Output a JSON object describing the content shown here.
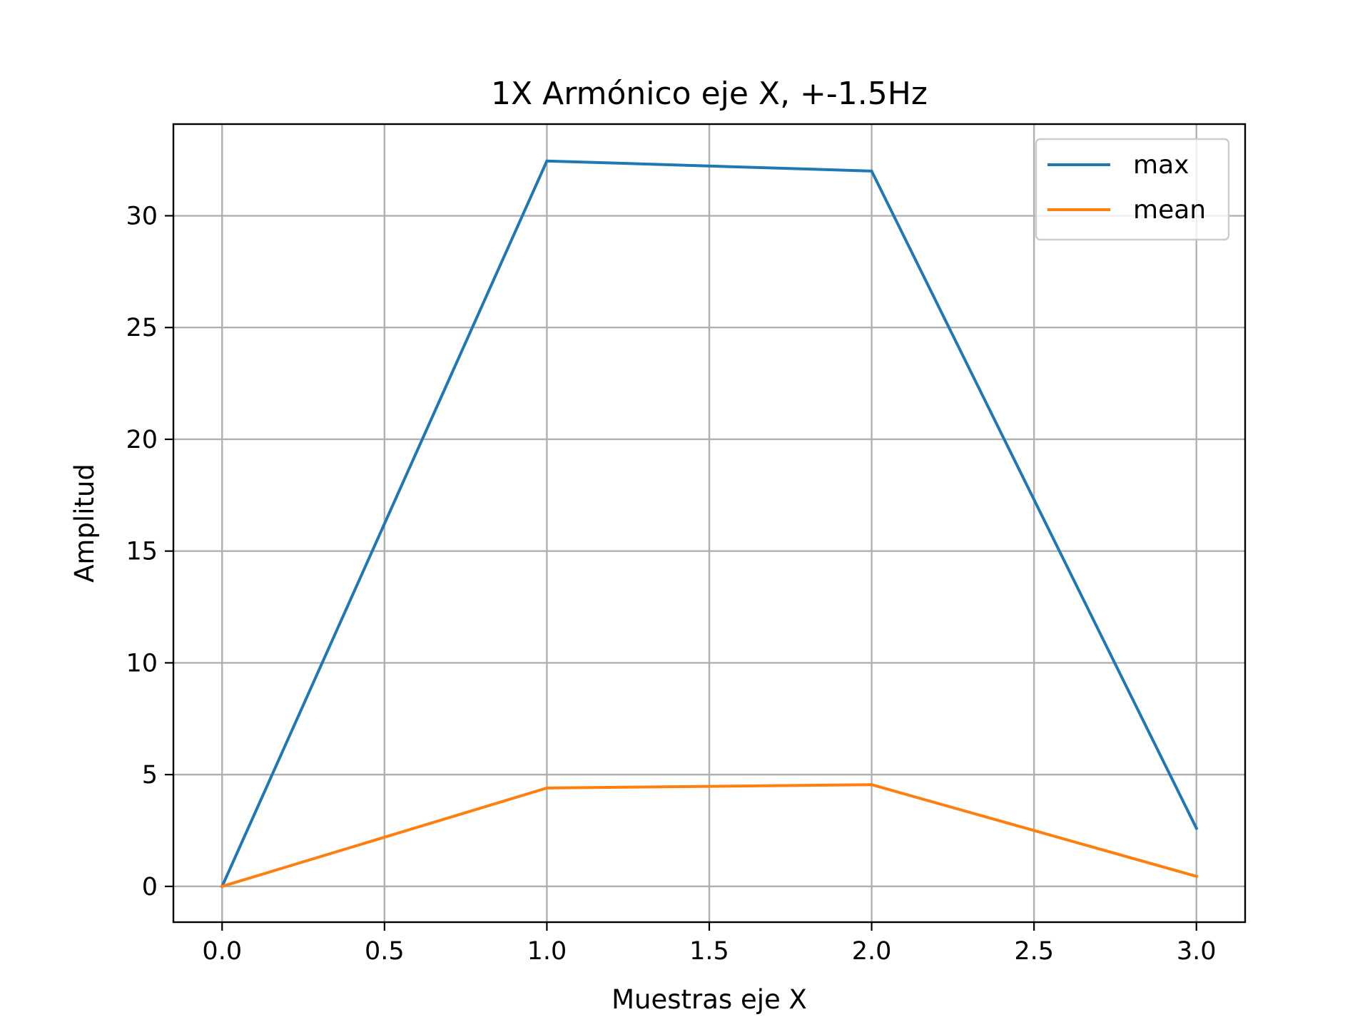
{
  "chart_data": {
    "type": "line",
    "title": "1X Armónico eje X, +-1.5Hz",
    "xlabel": "Muestras eje X",
    "ylabel": "Amplitud",
    "x": [
      0,
      1,
      2,
      3
    ],
    "series": [
      {
        "name": "max",
        "color": "#1f77b4",
        "values": [
          0.0,
          32.45,
          32.0,
          2.6
        ]
      },
      {
        "name": "mean",
        "color": "#ff7f0e",
        "values": [
          0.0,
          4.4,
          4.55,
          0.45
        ]
      }
    ],
    "xlim": [
      -0.15,
      3.15
    ],
    "ylim": [
      -1.6,
      34.1
    ],
    "xticks": [
      0.0,
      0.5,
      1.0,
      1.5,
      2.0,
      2.5,
      3.0
    ],
    "xtick_labels": [
      "0.0",
      "0.5",
      "1.0",
      "1.5",
      "2.0",
      "2.5",
      "3.0"
    ],
    "yticks": [
      0,
      5,
      10,
      15,
      20,
      25,
      30
    ],
    "ytick_labels": [
      "0",
      "5",
      "10",
      "15",
      "20",
      "25",
      "30"
    ],
    "grid": true,
    "legend": "upper right"
  }
}
